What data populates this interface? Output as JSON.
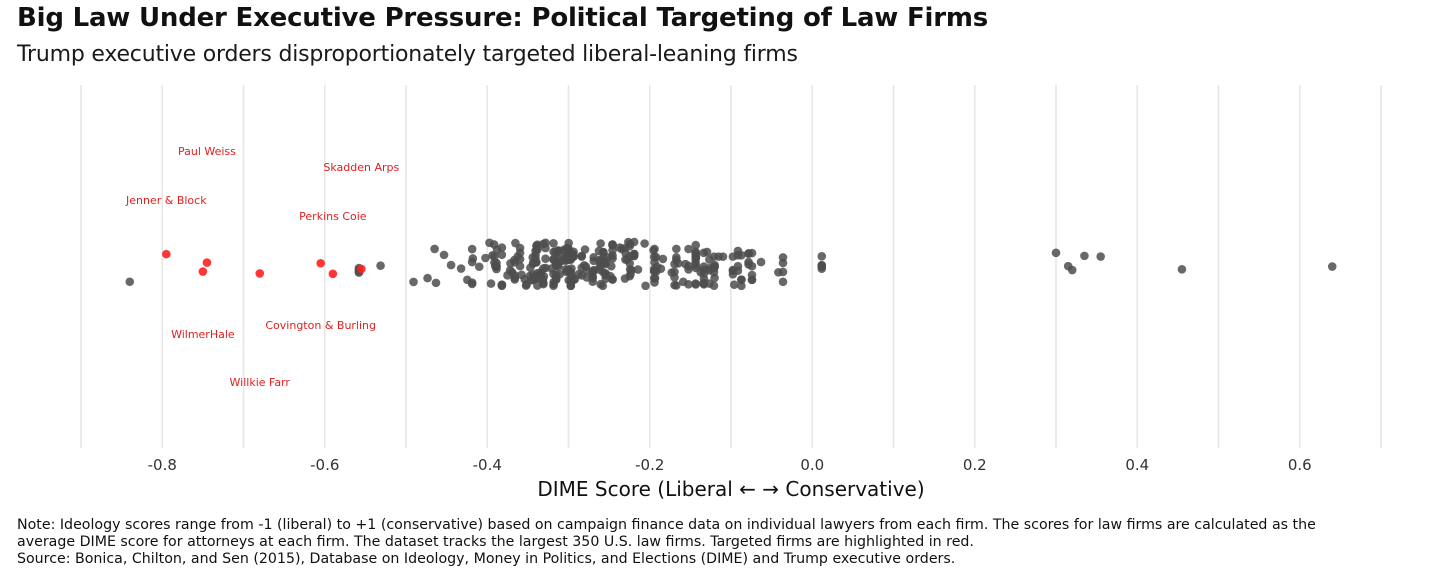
{
  "header": {
    "title": "Big Law Under Executive Pressure: Political Targeting of Law Firms",
    "subtitle": "Trump executive orders disproportionately targeted liberal-leaning firms"
  },
  "footer": {
    "note_line1": "Note: Ideology scores range from -1 (liberal) to +1 (conservative) based on campaign finance data on individual lawyers from each firm. The scores for law firms are calculated as the",
    "note_line2": "average DIME score for attorneys at each firm. The dataset tracks the largest 350 U.S. law firms. Targeted firms are highlighted in red.",
    "note_line3": "Source: Bonica, Chilton, and Sen (2015), Database on Ideology, Money in Politics, and Elections (DIME) and Trump executive orders."
  },
  "chart_data": {
    "type": "scatter",
    "xlabel": "DIME Score (Liberal ← → Conservative)",
    "xlim": [
      -0.9,
      0.7
    ],
    "x_ticks": [
      -0.8,
      -0.6,
      -0.4,
      -0.2,
      0.0,
      0.2,
      0.4,
      0.6
    ],
    "x_tick_labels": [
      "-0.8",
      "-0.6",
      "-0.4",
      "-0.2",
      "0.0",
      "0.2",
      "0.4",
      "0.6"
    ],
    "grid": true,
    "colors": {
      "firm": "#4d4d4d",
      "targeted": "#ff2020",
      "label": "#e02020",
      "grid": "#e6e6e6"
    },
    "targeted_firms": [
      {
        "name": "Paul Weiss",
        "score": -0.745
      },
      {
        "name": "Skadden Arps",
        "score": -0.555
      },
      {
        "name": "Jenner & Block",
        "score": -0.795
      },
      {
        "name": "Perkins Coie",
        "score": -0.59
      },
      {
        "name": "WilmerHale",
        "score": -0.75
      },
      {
        "name": "Covington & Burling",
        "score": -0.605
      },
      {
        "name": "Willkie Farr",
        "score": -0.68
      }
    ],
    "firm_count": 350,
    "extreme_firms": [
      {
        "score": -0.84
      },
      {
        "score": 0.3
      },
      {
        "score": 0.315
      },
      {
        "score": 0.32
      },
      {
        "score": 0.335
      },
      {
        "score": 0.355
      },
      {
        "score": 0.455
      },
      {
        "score": 0.64
      }
    ]
  }
}
